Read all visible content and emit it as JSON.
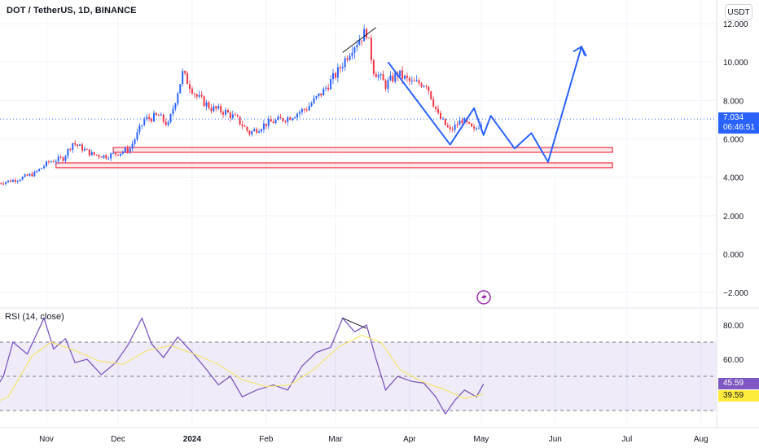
{
  "header": {
    "symbol_title": "DOT / TetherUS, 1D, BINANCE",
    "currency_button": "USDT"
  },
  "price_tag": {
    "price": "7.034",
    "countdown": "06:46:51",
    "color": "#2962ff"
  },
  "rsi": {
    "label": "RSI (14, close)",
    "value_tag": "45.59",
    "ma_tag": "39.59",
    "value_tag_color": "#7e57c2",
    "ma_tag_color": "#ffeb3b"
  },
  "chart_data": [
    {
      "type": "candlestick",
      "title": "DOT / TetherUS, 1D, BINANCE",
      "ylim": [
        -2.2,
        12.5
      ],
      "y_ticks": [
        "12.000",
        "10.000",
        "8.000",
        "6.000",
        "4.000",
        "2.000",
        "0.000",
        "−2.000"
      ],
      "x_ticks": [
        "Nov",
        "Dec",
        "2024",
        "Feb",
        "Mar",
        "Apr",
        "May",
        "Jun",
        "Jul",
        "Aug"
      ],
      "up_color": "#2962ff",
      "down_color": "#f23645",
      "price_closes": [
        {
          "x": "2023-10-12",
          "y": 3.7
        },
        {
          "x": "2023-10-20",
          "y": 3.9
        },
        {
          "x": "2023-10-27",
          "y": 4.2
        },
        {
          "x": "2023-11-02",
          "y": 4.8
        },
        {
          "x": "2023-11-08",
          "y": 5.0
        },
        {
          "x": "2023-11-12",
          "y": 5.8
        },
        {
          "x": "2023-11-20",
          "y": 5.2
        },
        {
          "x": "2023-11-26",
          "y": 5.1
        },
        {
          "x": "2023-12-02",
          "y": 5.3
        },
        {
          "x": "2023-12-06",
          "y": 5.5
        },
        {
          "x": "2023-12-12",
          "y": 7.0
        },
        {
          "x": "2023-12-18",
          "y": 7.2
        },
        {
          "x": "2023-12-22",
          "y": 6.7
        },
        {
          "x": "2023-12-28",
          "y": 9.4
        },
        {
          "x": "2024-01-03",
          "y": 8.2
        },
        {
          "x": "2024-01-09",
          "y": 7.6
        },
        {
          "x": "2024-01-15",
          "y": 7.4
        },
        {
          "x": "2024-01-20",
          "y": 7.0
        },
        {
          "x": "2024-01-25",
          "y": 6.3
        },
        {
          "x": "2024-02-01",
          "y": 6.8
        },
        {
          "x": "2024-02-10",
          "y": 7.1
        },
        {
          "x": "2024-02-18",
          "y": 7.6
        },
        {
          "x": "2024-02-25",
          "y": 8.5
        },
        {
          "x": "2024-03-02",
          "y": 9.5
        },
        {
          "x": "2024-03-08",
          "y": 10.8
        },
        {
          "x": "2024-03-14",
          "y": 11.6
        },
        {
          "x": "2024-03-17",
          "y": 9.6
        },
        {
          "x": "2024-03-22",
          "y": 8.8
        },
        {
          "x": "2024-03-27",
          "y": 9.4
        },
        {
          "x": "2024-04-02",
          "y": 8.9
        },
        {
          "x": "2024-04-08",
          "y": 8.9
        },
        {
          "x": "2024-04-13",
          "y": 7.2
        },
        {
          "x": "2024-04-18",
          "y": 6.4
        },
        {
          "x": "2024-04-23",
          "y": 7.0
        },
        {
          "x": "2024-04-28",
          "y": 6.4
        },
        {
          "x": "2024-05-02",
          "y": 7.034
        }
      ],
      "zones": [
        {
          "name": "support-zone-upper",
          "x_start": "2023-11-29",
          "x_end": "2024-06-25",
          "y_low": 5.3,
          "y_high": 5.55
        },
        {
          "name": "support-zone-lower",
          "x_start": "2023-11-05",
          "x_end": "2024-06-25",
          "y_low": 4.5,
          "y_high": 4.75
        }
      ],
      "projection_path": [
        {
          "x": "2024-03-23",
          "y": 10.0
        },
        {
          "x": "2024-04-18",
          "y": 5.7
        },
        {
          "x": "2024-04-28",
          "y": 7.6
        },
        {
          "x": "2024-05-02",
          "y": 6.2
        },
        {
          "x": "2024-05-05",
          "y": 7.2
        },
        {
          "x": "2024-05-15",
          "y": 5.5
        },
        {
          "x": "2024-05-22",
          "y": 6.3
        },
        {
          "x": "2024-05-29",
          "y": 4.8
        },
        {
          "x": "2024-06-12",
          "y": 10.8
        },
        {
          "x": "2024-06-14",
          "y": 10.3
        }
      ],
      "annotation_lines": [
        {
          "name": "top-trendline",
          "points": [
            {
              "x": "2024-03-04",
              "y": 10.5
            },
            {
              "x": "2024-03-18",
              "y": 11.8
            }
          ]
        }
      ]
    },
    {
      "type": "line",
      "title": "RSI (14, close)",
      "ylim": [
        21,
        94
      ],
      "y_ticks": [
        "80.00",
        "60.00"
      ],
      "bands": {
        "upper": 70,
        "middle": 50,
        "lower": 30
      },
      "band_fill": "#7e57c2",
      "series": [
        {
          "name": "RSI",
          "color": "#7e57c2",
          "values": [
            {
              "x": "2023-10-08",
              "y": 37
            },
            {
              "x": "2023-10-14",
              "y": 50
            },
            {
              "x": "2023-10-18",
              "y": 70
            },
            {
              "x": "2023-10-24",
              "y": 63
            },
            {
              "x": "2023-10-31",
              "y": 84
            },
            {
              "x": "2023-11-04",
              "y": 66
            },
            {
              "x": "2023-11-09",
              "y": 72
            },
            {
              "x": "2023-11-13",
              "y": 58
            },
            {
              "x": "2023-11-18",
              "y": 60
            },
            {
              "x": "2023-11-24",
              "y": 51
            },
            {
              "x": "2023-11-30",
              "y": 58
            },
            {
              "x": "2023-12-05",
              "y": 68
            },
            {
              "x": "2023-12-11",
              "y": 84
            },
            {
              "x": "2023-12-15",
              "y": 69
            },
            {
              "x": "2023-12-20",
              "y": 61
            },
            {
              "x": "2023-12-26",
              "y": 73
            },
            {
              "x": "2024-01-01",
              "y": 64
            },
            {
              "x": "2024-01-07",
              "y": 54
            },
            {
              "x": "2024-01-12",
              "y": 45
            },
            {
              "x": "2024-01-17",
              "y": 50
            },
            {
              "x": "2024-01-22",
              "y": 38
            },
            {
              "x": "2024-01-28",
              "y": 42
            },
            {
              "x": "2024-02-04",
              "y": 45
            },
            {
              "x": "2024-02-10",
              "y": 42
            },
            {
              "x": "2024-02-16",
              "y": 56
            },
            {
              "x": "2024-02-22",
              "y": 64
            },
            {
              "x": "2024-02-28",
              "y": 67
            },
            {
              "x": "2024-03-04",
              "y": 84
            },
            {
              "x": "2024-03-09",
              "y": 76
            },
            {
              "x": "2024-03-14",
              "y": 80
            },
            {
              "x": "2024-03-18",
              "y": 60
            },
            {
              "x": "2024-03-22",
              "y": 42
            },
            {
              "x": "2024-03-27",
              "y": 50
            },
            {
              "x": "2024-04-02",
              "y": 47
            },
            {
              "x": "2024-04-07",
              "y": 46
            },
            {
              "x": "2024-04-12",
              "y": 38
            },
            {
              "x": "2024-04-16",
              "y": 28
            },
            {
              "x": "2024-04-20",
              "y": 36
            },
            {
              "x": "2024-04-24",
              "y": 42
            },
            {
              "x": "2024-04-29",
              "y": 38
            },
            {
              "x": "2024-05-02",
              "y": 45.59
            }
          ]
        },
        {
          "name": "RSI MA",
          "color": "#f7e463",
          "values": [
            {
              "x": "2023-10-08",
              "y": 33
            },
            {
              "x": "2023-10-16",
              "y": 38
            },
            {
              "x": "2023-10-26",
              "y": 62
            },
            {
              "x": "2023-11-03",
              "y": 70
            },
            {
              "x": "2023-11-13",
              "y": 65
            },
            {
              "x": "2023-11-23",
              "y": 59
            },
            {
              "x": "2023-12-03",
              "y": 57
            },
            {
              "x": "2023-12-13",
              "y": 65
            },
            {
              "x": "2023-12-23",
              "y": 68
            },
            {
              "x": "2024-01-02",
              "y": 63
            },
            {
              "x": "2024-01-12",
              "y": 57
            },
            {
              "x": "2024-01-22",
              "y": 48
            },
            {
              "x": "2024-02-01",
              "y": 44
            },
            {
              "x": "2024-02-11",
              "y": 45
            },
            {
              "x": "2024-02-21",
              "y": 54
            },
            {
              "x": "2024-03-02",
              "y": 67
            },
            {
              "x": "2024-03-12",
              "y": 74
            },
            {
              "x": "2024-03-20",
              "y": 70
            },
            {
              "x": "2024-03-28",
              "y": 54
            },
            {
              "x": "2024-04-06",
              "y": 47
            },
            {
              "x": "2024-04-16",
              "y": 42
            },
            {
              "x": "2024-04-24",
              "y": 37
            },
            {
              "x": "2024-05-02",
              "y": 39.59
            }
          ]
        }
      ],
      "annotation_lines": [
        {
          "name": "rsi-divergence-line",
          "points": [
            {
              "x": "2024-03-04",
              "y": 84
            },
            {
              "x": "2024-03-14",
              "y": 78
            }
          ]
        }
      ]
    }
  ]
}
